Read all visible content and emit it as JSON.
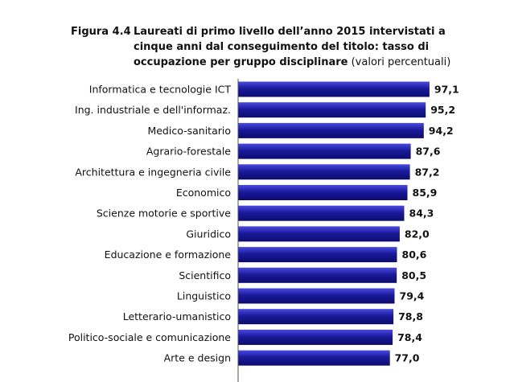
{
  "figure": {
    "number": "Figura 4.4",
    "title_bold": "Laureati di primo livello dell’anno 2015 intervistati a cinque anni dal conseguimento del titolo: tasso di occupazione per gruppo disciplinare",
    "title_suffix": "(valori percentuali)"
  },
  "chart_data": {
    "type": "bar",
    "orientation": "horizontal",
    "categories": [
      "Informatica e tecnologie ICT",
      "Ing. industriale e dell'informaz.",
      "Medico-sanitario",
      "Agrario-forestale",
      "Architettura e ingegneria civile",
      "Economico",
      "Scienze motorie e sportive",
      "Giuridico",
      "Educazione e formazione",
      "Scientifico",
      "Linguistico",
      "Letterario-umanistico",
      "Politico-sociale e comunicazione",
      "Arte e design"
    ],
    "values": [
      97.1,
      95.2,
      94.2,
      87.6,
      87.2,
      85.9,
      84.3,
      82.0,
      80.6,
      80.5,
      79.4,
      78.8,
      78.4,
      77.0
    ],
    "value_labels": [
      "97,1",
      "95,2",
      "94,2",
      "87,6",
      "87,2",
      "85,9",
      "84,3",
      "82,0",
      "80,6",
      "80,5",
      "79,4",
      "78,8",
      "78,4",
      "77,0"
    ],
    "xlim": [
      0,
      100
    ],
    "bar_color": "#1a1a9c",
    "bar_color_dark": "#0c0c6e",
    "bar_highlight": "#4a4ae0",
    "grid": false,
    "legend": false
  }
}
